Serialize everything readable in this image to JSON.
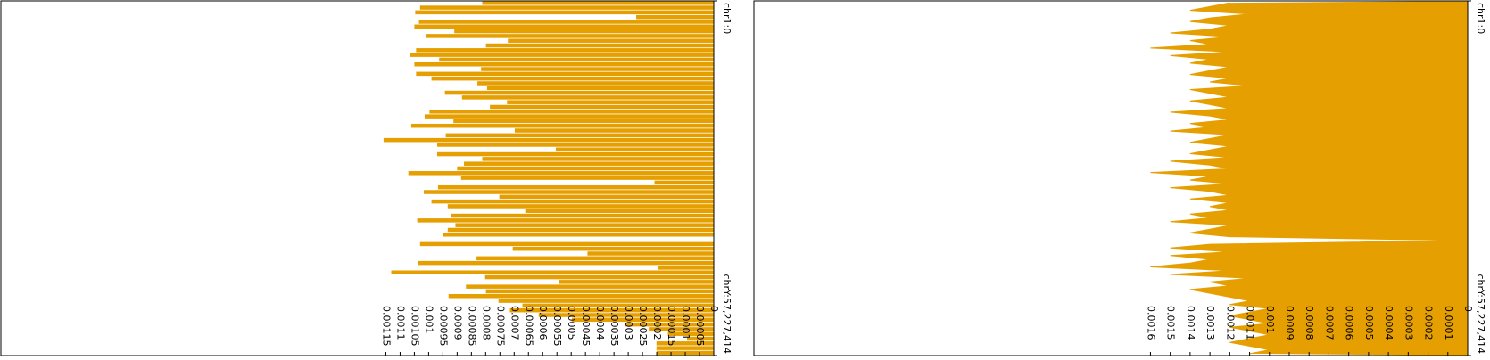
{
  "chart_data": [
    {
      "type": "bar",
      "color": "#e69f00",
      "position_labels": [
        "chr1:0",
        "chrY:57,227,414"
      ],
      "xlim": [
        0,
        0.0025
      ],
      "xticks": [
        0,
        5e-05,
        0.0001,
        0.00015,
        0.0002,
        0.00025,
        0.0003,
        0.00035,
        0.0004,
        0.00045,
        0.0005,
        0.00055,
        0.0006,
        0.00065,
        0.0007,
        0.00075,
        0.0008,
        0.00085,
        0.0009,
        0.00095,
        0.001,
        0.00105,
        0.0011,
        0.00115
      ],
      "values": [
        0.000812,
        0.00103,
        0.001047,
        0.000272,
        0.001034,
        0.00105,
        0.00091,
        0.00101,
        0.000722,
        0.000799,
        0.001044,
        0.001064,
        0.000963,
        0.00105,
        0.000816,
        0.001044,
        0.00099,
        0.000829,
        0.000795,
        0.000943,
        0.000883,
        0.000725,
        0.000785,
        0.000997,
        0.001014,
        0.000913,
        0.001061,
        0.000698,
        0.00094,
        0.001158,
        0.00097,
        0.000554,
        0.00097,
        0.000812,
        0.000876,
        0.0009,
        0.001071,
        0.000886,
        0.000208,
        0.000967,
        0.001017,
        0.000752,
        0.00099,
        0.000933,
        0.000661,
        0.00092,
        0.00104,
        0.000906,
        0.000933,
        0.00095,
        0,
        0.00103,
        0.000705,
        0.000443,
        0.000832,
        0.001037,
        0.000195,
        0.001131,
        0.000802,
        0.000544,
        0.000869,
        0.000799,
        0.00093,
        0.000755,
        0.000671,
        0.000715,
        0.000614,
        0.000497,
        0.000312,
        0.000228,
        0.000161,
        9.4e-05,
        0.000201,
        0.000201,
        0.000201
      ]
    },
    {
      "type": "area",
      "color": "#e69f00",
      "position_labels": [
        "chr1:0",
        "chrY:57,227,414"
      ],
      "xlim": [
        0,
        0.0036
      ],
      "xticks": [
        0,
        0.0001,
        0.0002,
        0.0003,
        0.0004,
        0.0005,
        0.0006,
        0.0007,
        0.0008,
        0.0009,
        0.001,
        0.0011,
        0.0012,
        0.0013,
        0.0014,
        0.0015,
        0.0016
      ],
      "values": [
        0.0012,
        0.0013,
        0.0014,
        0.0011,
        0.0013,
        0.0014,
        0.0012,
        0.0013,
        0.0015,
        0.0012,
        0.0014,
        0.0013,
        0.0016,
        0.0012,
        0.0015,
        0.0013,
        0.0014,
        0.0012,
        0.0013,
        0.0014,
        0.0012,
        0.0013,
        0.0011,
        0.0014,
        0.0013,
        0.0012,
        0.0014,
        0.0013,
        0.0012,
        0.0015,
        0.0013,
        0.0012,
        0.0014,
        0.0013,
        0.0015,
        0.0012,
        0.0013,
        0.0014,
        0.0012,
        0.0013,
        0.0014,
        0.0012,
        0.0015,
        0.0013,
        0.0012,
        0.0016,
        0.0013,
        0.0014,
        0.0012,
        0.0015,
        0.0013,
        0.0012,
        0.0014,
        0.0012,
        0.0013,
        0.0012,
        0.0014,
        0.0013,
        0.0015,
        0.0012,
        0.0013,
        0.0014,
        0.0012,
        0,
        0.0013,
        0.0015,
        0.0012,
        0.0015,
        0.0013,
        0.0014,
        0.0016,
        0.0012,
        0.0015,
        0.0011,
        0.0013,
        0.0012,
        0.0014,
        0.0013,
        0.0012,
        0.0011,
        0.0012,
        0.001,
        0.0011,
        0.0012,
        0.0011,
        0.001,
        0.0012,
        0.0011,
        0.001,
        0.0011,
        0.0012,
        0.0011,
        0.001,
        0.0011
      ]
    }
  ]
}
